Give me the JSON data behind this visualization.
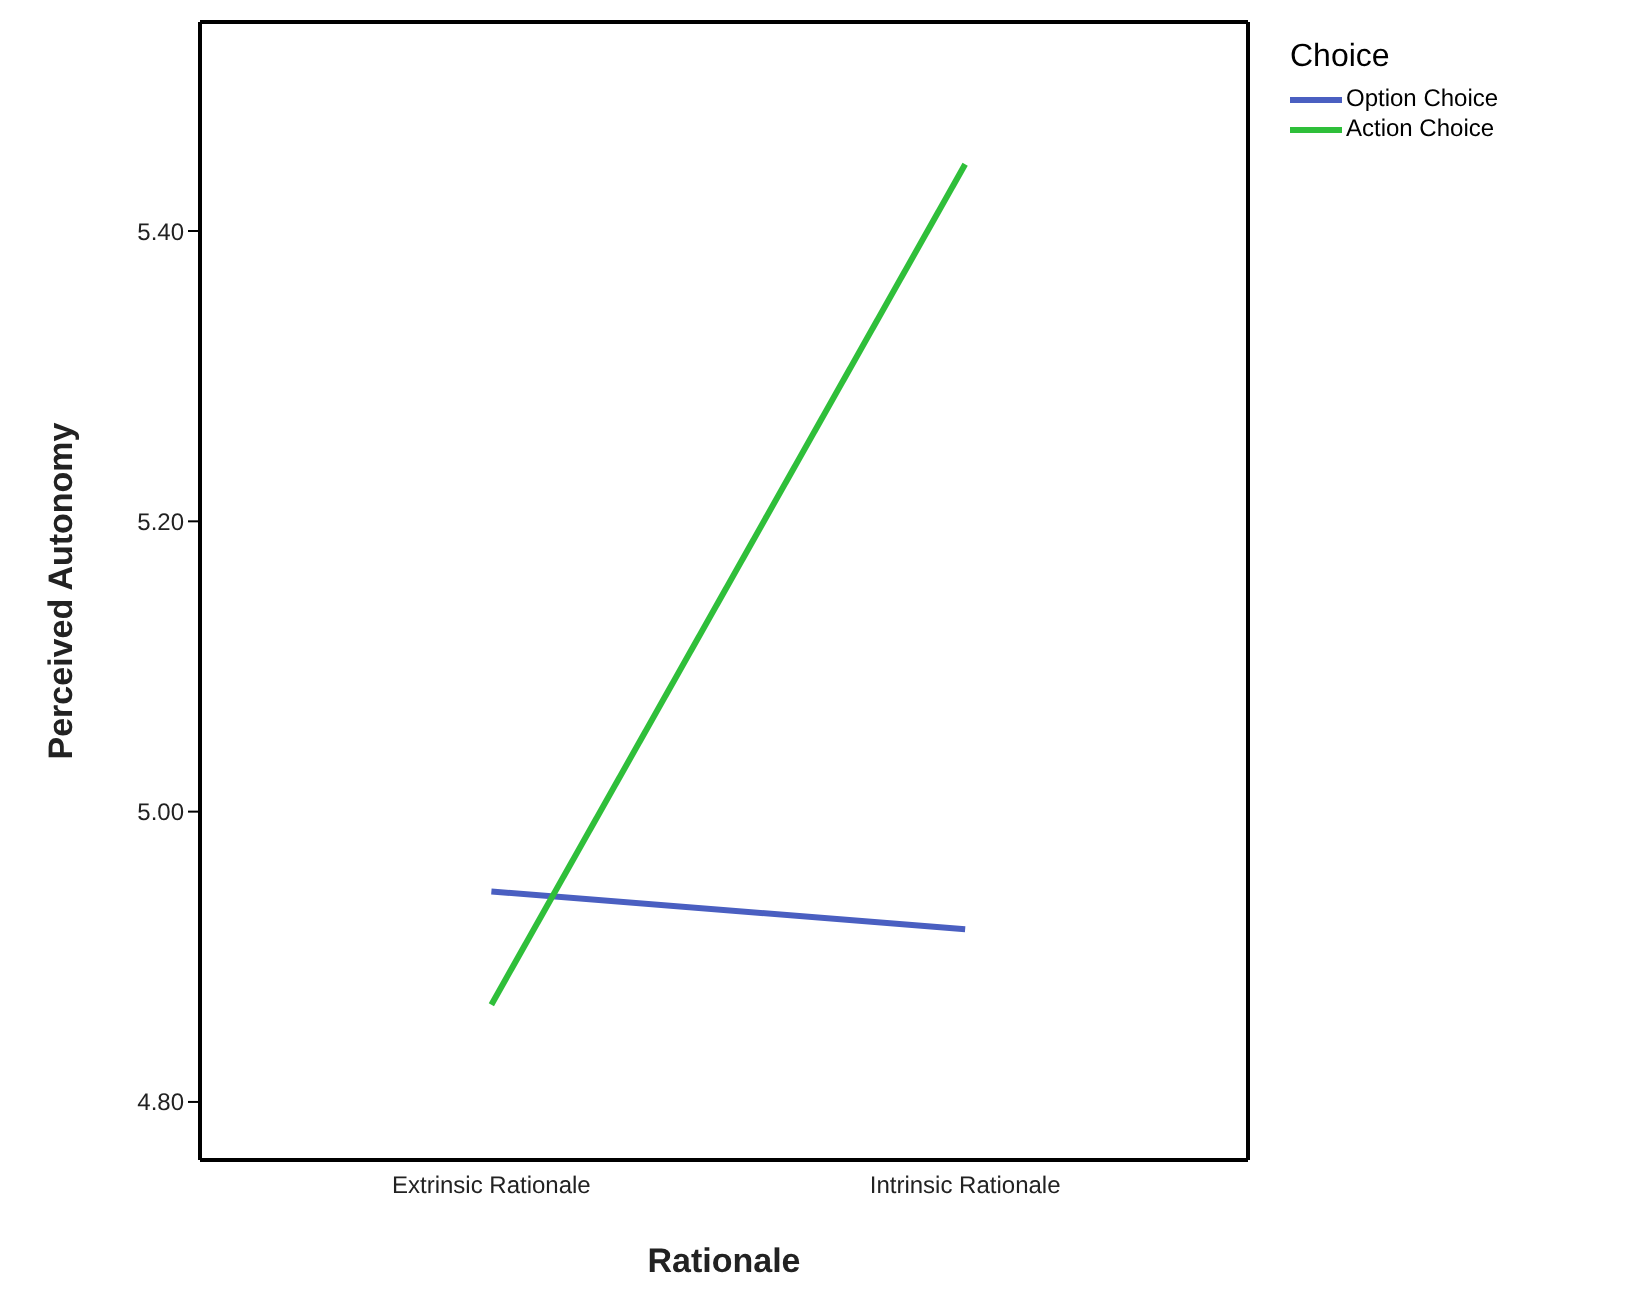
{
  "chart_data": {
    "type": "line",
    "xlabel": "Rationale",
    "ylabel": "Perceived Autonomy",
    "legend_title": "Choice",
    "categories": [
      "Extrinsic Rationale",
      "Intrinsic Rationale"
    ],
    "series": [
      {
        "name": "Option Choice",
        "color": "#4a5fc1",
        "values": [
          4.945,
          4.919
        ]
      },
      {
        "name": "Action Choice",
        "color": "#2fbf3a",
        "values": [
          4.867,
          5.446
        ]
      }
    ],
    "ylim": [
      4.76,
      5.544
    ],
    "yticks": [
      {
        "value": 4.8,
        "label": "4.80"
      },
      {
        "value": 5.0,
        "label": "5.00"
      },
      {
        "value": 5.2,
        "label": "5.20"
      },
      {
        "value": 5.4,
        "label": "5.40"
      }
    ],
    "grid": false,
    "legend": "top right",
    "marker": "none",
    "line_style": "solid"
  }
}
